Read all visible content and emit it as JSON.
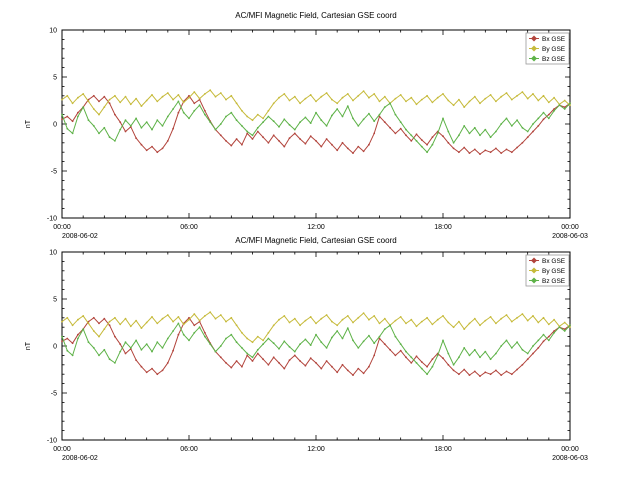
{
  "figure": {
    "background": "#ffffff",
    "axis_color": "#000000",
    "legend_border_color": "#999999"
  },
  "chart_data": [
    {
      "type": "line",
      "title": "AC/MFI Magnetic Field, Cartesian GSE coord",
      "ylabel": "nT",
      "ylim": [
        -10,
        10
      ],
      "ytick_major": 5,
      "ytick_minor": 1,
      "xlim_hours": [
        0,
        24
      ],
      "x_start_hours": 0,
      "x_step_hours": 0.25,
      "grid": false,
      "legend_position": "top-right",
      "xticks": [
        {
          "hour": 0,
          "label": "00:00",
          "sublabel": "2008-06-02"
        },
        {
          "hour": 6,
          "label": "06:00"
        },
        {
          "hour": 12,
          "label": "12:00"
        },
        {
          "hour": 18,
          "label": "18:00"
        },
        {
          "hour": 24,
          "label": "00:00",
          "sublabel": "2008-06-03"
        }
      ],
      "series": [
        {
          "name": "Bx GSE",
          "color": "#b2443c",
          "values": [
            0.5,
            0.8,
            0.3,
            1.2,
            1.8,
            2.6,
            3.0,
            2.4,
            2.9,
            2.2,
            1.0,
            0.2,
            -0.8,
            -0.3,
            -1.5,
            -2.2,
            -2.8,
            -2.4,
            -3.0,
            -2.6,
            -1.8,
            -0.5,
            1.2,
            2.4,
            3.0,
            2.2,
            2.6,
            1.4,
            0.3,
            -0.6,
            -1.2,
            -1.8,
            -2.3,
            -1.6,
            -2.2,
            -1.0,
            -1.6,
            -0.8,
            -1.4,
            -2.0,
            -1.2,
            -1.8,
            -2.4,
            -1.5,
            -1.0,
            -1.6,
            -2.1,
            -1.3,
            -1.8,
            -2.4,
            -1.6,
            -2.2,
            -2.8,
            -2.0,
            -2.6,
            -3.1,
            -2.4,
            -2.9,
            -2.2,
            -1.0,
            0.8,
            0.2,
            -0.4,
            -1.0,
            -0.5,
            -1.2,
            -1.8,
            -1.1,
            -1.7,
            -2.2,
            -1.4,
            -0.8,
            -1.3,
            -2.0,
            -2.6,
            -3.0,
            -2.5,
            -3.1,
            -2.7,
            -3.2,
            -2.8,
            -3.0,
            -2.6,
            -3.1,
            -2.7,
            -3.0,
            -2.5,
            -2.0,
            -1.4,
            -0.8,
            -0.2,
            0.5,
            1.0,
            1.6,
            2.0,
            1.8,
            2.2
          ]
        },
        {
          "name": "By GSE",
          "color": "#c6ba3a",
          "values": [
            2.6,
            3.0,
            2.2,
            2.8,
            3.2,
            2.4,
            1.6,
            1.0,
            1.8,
            2.6,
            3.0,
            2.3,
            2.9,
            2.1,
            2.7,
            1.9,
            2.5,
            3.1,
            2.4,
            2.9,
            3.3,
            2.6,
            3.1,
            2.3,
            2.8,
            3.4,
            2.7,
            3.2,
            3.6,
            2.9,
            3.3,
            2.6,
            3.0,
            2.2,
            1.4,
            0.8,
            0.4,
            1.0,
            0.6,
            1.4,
            2.2,
            2.8,
            3.2,
            2.5,
            2.9,
            2.2,
            2.7,
            3.1,
            2.4,
            2.9,
            3.3,
            2.6,
            2.2,
            2.8,
            3.2,
            2.5,
            3.0,
            3.5,
            2.8,
            3.2,
            2.4,
            2.9,
            2.2,
            2.7,
            3.1,
            2.4,
            2.8,
            2.1,
            2.6,
            3.0,
            2.3,
            2.8,
            3.2,
            2.5,
            2.0,
            2.6,
            1.8,
            2.4,
            2.9,
            2.2,
            2.7,
            3.1,
            2.4,
            2.9,
            3.3,
            2.6,
            3.0,
            3.4,
            2.7,
            3.2,
            2.5,
            3.0,
            2.3,
            2.8,
            2.1,
            2.5,
            2.0
          ]
        },
        {
          "name": "Bz GSE",
          "color": "#5eb248",
          "values": [
            1.0,
            -0.5,
            -1.0,
            0.8,
            1.8,
            0.4,
            -0.2,
            -1.0,
            -0.4,
            -1.4,
            -1.8,
            -0.6,
            0.4,
            -0.2,
            0.6,
            -0.4,
            0.2,
            -0.6,
            0.4,
            -0.2,
            0.8,
            1.6,
            2.4,
            1.2,
            0.6,
            1.4,
            2.0,
            1.0,
            0.2,
            -0.6,
            0.0,
            0.8,
            1.2,
            0.4,
            -0.2,
            -0.8,
            -1.2,
            -0.4,
            0.2,
            0.8,
            0.3,
            -0.3,
            0.5,
            -0.1,
            -0.6,
            0.2,
            0.7,
            0.1,
            1.2,
            0.4,
            -0.2,
            0.9,
            1.6,
            0.8,
            1.9,
            0.6,
            -0.2,
            0.5,
            1.1,
            0.3,
            1.0,
            1.8,
            2.2,
            1.0,
            0.2,
            -0.6,
            -1.2,
            -1.8,
            -2.4,
            -3.0,
            -2.2,
            -1.0,
            0.6,
            -0.8,
            -2.0,
            -1.2,
            -0.2,
            -1.0,
            -0.4,
            -1.2,
            -0.6,
            -1.4,
            -0.8,
            0.0,
            0.6,
            -0.2,
            0.4,
            -0.4,
            -0.8,
            0.0,
            0.6,
            1.2,
            0.6,
            1.4,
            2.0,
            1.6,
            2.2
          ]
        }
      ]
    },
    {
      "type": "line",
      "title": "AC/MFI Magnetic Field, Cartesian GSE coord",
      "ylabel": "nT",
      "ylim": [
        -10,
        10
      ],
      "ytick_major": 5,
      "ytick_minor": 1,
      "xlim_hours": [
        0,
        24
      ],
      "x_start_hours": 0,
      "x_step_hours": 0.25,
      "grid": false,
      "legend_position": "top-right",
      "xticks": [
        {
          "hour": 0,
          "label": "00:00",
          "sublabel": "2008-06-02"
        },
        {
          "hour": 6,
          "label": "06:00"
        },
        {
          "hour": 12,
          "label": "12:00"
        },
        {
          "hour": 18,
          "label": "18:00"
        },
        {
          "hour": 24,
          "label": "00:00",
          "sublabel": "2008-06-03"
        }
      ],
      "series": [
        {
          "name": "Bx GSE",
          "color": "#b2443c",
          "values": [
            0.5,
            0.8,
            0.3,
            1.2,
            1.8,
            2.6,
            3.0,
            2.4,
            2.9,
            2.2,
            1.0,
            0.2,
            -0.8,
            -0.3,
            -1.5,
            -2.2,
            -2.8,
            -2.4,
            -3.0,
            -2.6,
            -1.8,
            -0.5,
            1.2,
            2.4,
            3.0,
            2.2,
            2.6,
            1.4,
            0.3,
            -0.6,
            -1.2,
            -1.8,
            -2.3,
            -1.6,
            -2.2,
            -1.0,
            -1.6,
            -0.8,
            -1.4,
            -2.0,
            -1.2,
            -1.8,
            -2.4,
            -1.5,
            -1.0,
            -1.6,
            -2.1,
            -1.3,
            -1.8,
            -2.4,
            -1.6,
            -2.2,
            -2.8,
            -2.0,
            -2.6,
            -3.1,
            -2.4,
            -2.9,
            -2.2,
            -1.0,
            0.8,
            0.2,
            -0.4,
            -1.0,
            -0.5,
            -1.2,
            -1.8,
            -1.1,
            -1.7,
            -2.2,
            -1.4,
            -0.8,
            -1.3,
            -2.0,
            -2.6,
            -3.0,
            -2.5,
            -3.1,
            -2.7,
            -3.2,
            -2.8,
            -3.0,
            -2.6,
            -3.1,
            -2.7,
            -3.0,
            -2.5,
            -2.0,
            -1.4,
            -0.8,
            -0.2,
            0.5,
            1.0,
            1.6,
            2.0,
            1.8,
            2.2
          ]
        },
        {
          "name": "By GSE",
          "color": "#c6ba3a",
          "values": [
            2.6,
            3.0,
            2.2,
            2.8,
            3.2,
            2.4,
            1.6,
            1.0,
            1.8,
            2.6,
            3.0,
            2.3,
            2.9,
            2.1,
            2.7,
            1.9,
            2.5,
            3.1,
            2.4,
            2.9,
            3.3,
            2.6,
            3.1,
            2.3,
            2.8,
            3.4,
            2.7,
            3.2,
            3.6,
            2.9,
            3.3,
            2.6,
            3.0,
            2.2,
            1.4,
            0.8,
            0.4,
            1.0,
            0.6,
            1.4,
            2.2,
            2.8,
            3.2,
            2.5,
            2.9,
            2.2,
            2.7,
            3.1,
            2.4,
            2.9,
            3.3,
            2.6,
            2.2,
            2.8,
            3.2,
            2.5,
            3.0,
            3.5,
            2.8,
            3.2,
            2.4,
            2.9,
            2.2,
            2.7,
            3.1,
            2.4,
            2.8,
            2.1,
            2.6,
            3.0,
            2.3,
            2.8,
            3.2,
            2.5,
            2.0,
            2.6,
            1.8,
            2.4,
            2.9,
            2.2,
            2.7,
            3.1,
            2.4,
            2.9,
            3.3,
            2.6,
            3.0,
            3.4,
            2.7,
            3.2,
            2.5,
            3.0,
            2.3,
            2.8,
            2.1,
            2.5,
            2.0
          ]
        },
        {
          "name": "Bz GSE",
          "color": "#5eb248",
          "values": [
            1.0,
            -0.5,
            -1.0,
            0.8,
            1.8,
            0.4,
            -0.2,
            -1.0,
            -0.4,
            -1.4,
            -1.8,
            -0.6,
            0.4,
            -0.2,
            0.6,
            -0.4,
            0.2,
            -0.6,
            0.4,
            -0.2,
            0.8,
            1.6,
            2.4,
            1.2,
            0.6,
            1.4,
            2.0,
            1.0,
            0.2,
            -0.6,
            0.0,
            0.8,
            1.2,
            0.4,
            -0.2,
            -0.8,
            -1.2,
            -0.4,
            0.2,
            0.8,
            0.3,
            -0.3,
            0.5,
            -0.1,
            -0.6,
            0.2,
            0.7,
            0.1,
            1.2,
            0.4,
            -0.2,
            0.9,
            1.6,
            0.8,
            1.9,
            0.6,
            -0.2,
            0.5,
            1.1,
            0.3,
            1.0,
            1.8,
            2.2,
            1.0,
            0.2,
            -0.6,
            -1.2,
            -1.8,
            -2.4,
            -3.0,
            -2.2,
            -1.0,
            0.6,
            -0.8,
            -2.0,
            -1.2,
            -0.2,
            -1.0,
            -0.4,
            -1.2,
            -0.6,
            -1.4,
            -0.8,
            0.0,
            0.6,
            -0.2,
            0.4,
            -0.4,
            -0.8,
            0.0,
            0.6,
            1.2,
            0.6,
            1.4,
            2.0,
            1.6,
            2.2
          ]
        }
      ]
    }
  ]
}
